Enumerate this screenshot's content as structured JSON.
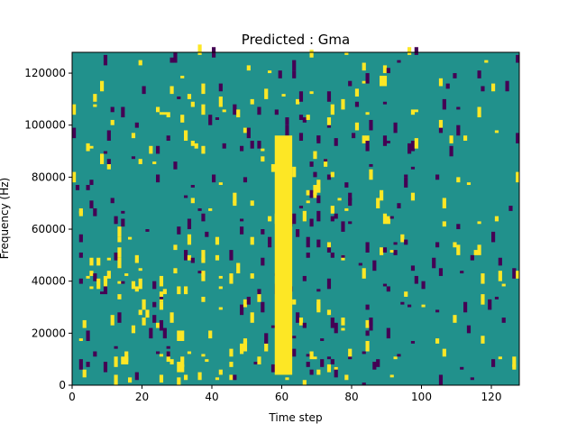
{
  "chart_data": {
    "type": "heatmap",
    "title": "Predicted : Gma",
    "xlabel": "Time step",
    "ylabel": "Frequency (Hz)",
    "xlim": [
      0,
      128
    ],
    "ylim": [
      0,
      128000
    ],
    "x_ticks": [
      0,
      20,
      40,
      60,
      80,
      100,
      120
    ],
    "y_ticks": [
      0,
      20000,
      40000,
      60000,
      80000,
      100000,
      120000
    ],
    "y_tick_labels": [
      "0",
      "20000",
      "40000",
      "60000",
      "80000",
      "100000",
      "120000"
    ],
    "grid": false,
    "legend": "none",
    "colormap": "viridis",
    "colors": {
      "background": "#21918c",
      "high": "#fde725",
      "low": "#440154"
    },
    "vertical_band": {
      "x_range": [
        58,
        63
      ],
      "y_range": [
        4000,
        96000
      ],
      "value": "high"
    }
  }
}
